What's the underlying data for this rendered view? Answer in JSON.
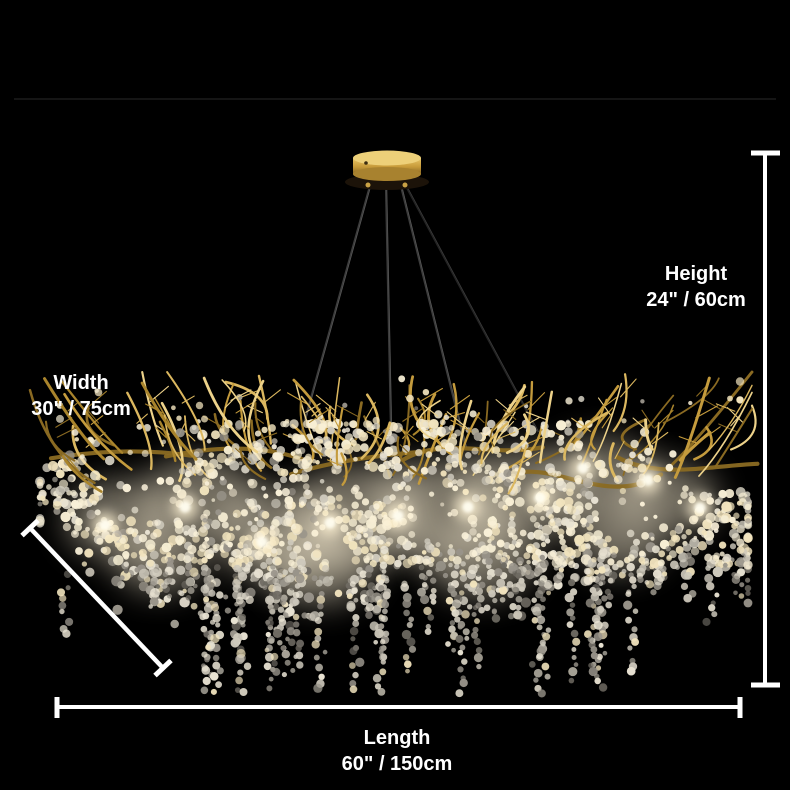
{
  "page": {
    "background": "#000000",
    "subject": "crystal-branch-chandelier-product-photo"
  },
  "annotations": {
    "color": "#ffffff",
    "height": {
      "label": "Height",
      "value": "24\" / 60cm"
    },
    "width": {
      "label": "Width",
      "value": "30\" / 75cm"
    },
    "length": {
      "label": "Length",
      "value": "60\" / 150cm"
    }
  },
  "artwork": {
    "canopy_gold": "#caa245",
    "cable_color": "#3b3b3b",
    "glow_color": "#f8ecd0",
    "bulb_color": "#fff3d4",
    "bulb_core_color": "#fffdf0",
    "seam_color": "#151515",
    "gold_colors": [
      "#8a6a22",
      "#a9842c",
      "#c49b3d",
      "#dbb75f",
      "#edd28a"
    ],
    "crystal_colors": [
      "#f7eed4",
      "#f1e3bd",
      "#e8e2d2",
      "#cdc8bb",
      "#99948a",
      "#6e6a62"
    ]
  }
}
